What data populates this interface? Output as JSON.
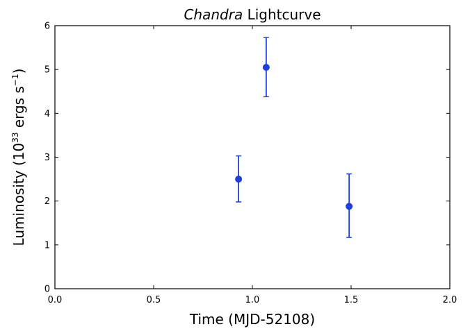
{
  "chart_data": {
    "type": "scatter",
    "title_italic": "Chandra",
    "title_rest": "Lightcurve",
    "xlabel": "Time (MJD-52108)",
    "ylabel_main": "Luminosity (10",
    "ylabel_exp1": "33",
    "ylabel_mid": " ergs s",
    "ylabel_exp2": "−1",
    "ylabel_close": ")",
    "xlim": [
      0.0,
      2.0
    ],
    "ylim": [
      0,
      6
    ],
    "xticks": [
      0.0,
      0.5,
      1.0,
      1.5,
      2.0
    ],
    "xtick_labels": [
      "0.0",
      "0.5",
      "1.0",
      "1.5",
      "2.0"
    ],
    "yticks": [
      0,
      1,
      2,
      3,
      4,
      5,
      6
    ],
    "ytick_labels": [
      "0",
      "1",
      "2",
      "3",
      "4",
      "5",
      "6"
    ],
    "grid": false,
    "series": [
      {
        "color": "#1f3fdc",
        "points": [
          {
            "x": 0.93,
            "y": 2.5,
            "yerr_low": 1.98,
            "yerr_high": 3.03
          },
          {
            "x": 1.07,
            "y": 5.05,
            "yerr_low": 4.38,
            "yerr_high": 5.73
          },
          {
            "x": 1.49,
            "y": 1.88,
            "yerr_low": 1.17,
            "yerr_high": 2.62
          }
        ]
      }
    ]
  }
}
